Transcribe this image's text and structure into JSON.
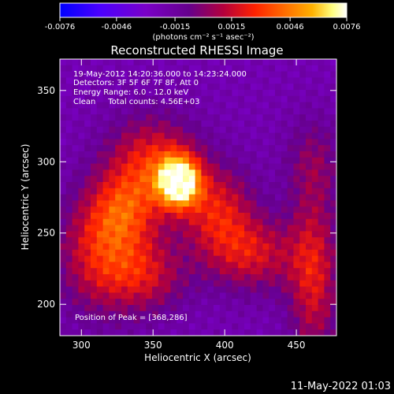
{
  "chart_data": {
    "type": "heatmap",
    "title": "Reconstructed RHESSI Image",
    "xlabel": "Heliocentric X (arcsec)",
    "ylabel": "Heliocentric Y (arcsec)",
    "xlim": [
      285,
      478
    ],
    "ylim": [
      178,
      372
    ],
    "xticks": [
      "300",
      "350",
      "400",
      "450"
    ],
    "yticks": [
      "200",
      "250",
      "300",
      "350"
    ],
    "x_tick_values": [
      300,
      350,
      400,
      450
    ],
    "y_tick_values": [
      200,
      250,
      300,
      350
    ],
    "colorbar": {
      "ticks": [
        "-0.0076",
        "-0.0046",
        "-0.0015",
        "0.0015",
        "0.0046",
        "0.0076"
      ],
      "tick_values": [
        -0.0076,
        -0.0046,
        -0.0015,
        0.0015,
        0.0046,
        0.0076
      ],
      "range": [
        -0.0076,
        0.0076
      ],
      "unit_label": "(photons cm⁻² s⁻¹ asec⁻²)",
      "colors": [
        "#0000ff",
        "#4b00ff",
        "#7a00c8",
        "#66008c",
        "#b3003c",
        "#ff2200",
        "#ff6a00",
        "#ffb100",
        "#ffff80",
        "#ffffff"
      ]
    },
    "annotations": [
      "19-May-2012 14:20:36.000 to 14:23:24.000",
      "Detectors: 3F 5F 6F 7F 8F, Att 0",
      "Energy Range: 6.0 - 12.0 keV",
      "Clean     Total counts: 4.56E+03"
    ],
    "peak": {
      "label": "Position of Peak = [368,286]",
      "x": 368,
      "y": 286
    },
    "footer": "11-May-2022 01:03",
    "sources": [
      {
        "x": 368,
        "y": 286,
        "amp": 1.0,
        "sx": 10,
        "sy": 12
      },
      {
        "x": 350,
        "y": 300,
        "amp": 0.45,
        "sx": 22,
        "sy": 22
      },
      {
        "x": 330,
        "y": 265,
        "amp": 0.42,
        "sx": 18,
        "sy": 20
      },
      {
        "x": 312,
        "y": 235,
        "amp": 0.4,
        "sx": 20,
        "sy": 28
      },
      {
        "x": 345,
        "y": 220,
        "amp": 0.35,
        "sx": 20,
        "sy": 18
      },
      {
        "x": 395,
        "y": 265,
        "amp": 0.42,
        "sx": 18,
        "sy": 22
      },
      {
        "x": 420,
        "y": 235,
        "amp": 0.38,
        "sx": 22,
        "sy": 18
      },
      {
        "x": 462,
        "y": 220,
        "amp": 0.42,
        "sx": 12,
        "sy": 40
      },
      {
        "x": 462,
        "y": 300,
        "amp": 0.2,
        "sx": 14,
        "sy": 22
      }
    ]
  }
}
